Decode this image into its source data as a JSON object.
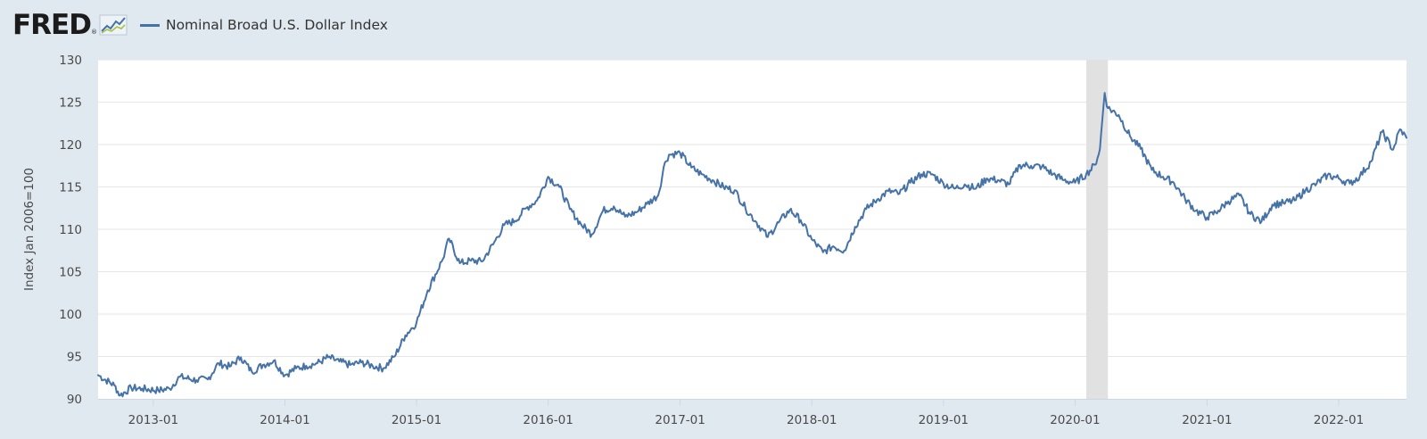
{
  "brand": {
    "logo_text": "FRED",
    "logo_icon": "sparkline-chart-icon",
    "registered_mark": "®"
  },
  "legend": {
    "label": "Nominal Broad U.S. Dollar Index",
    "color": "#4572a7"
  },
  "chart_data": {
    "type": "line",
    "title": "",
    "ylabel": "Index Jan 2006=100",
    "xlabel": "",
    "ylim": [
      90,
      130
    ],
    "yticks": [
      90,
      95,
      100,
      105,
      110,
      115,
      120,
      125,
      130
    ],
    "xlim": [
      "2012-08-01",
      "2022-07-08"
    ],
    "xticks": [
      "2013-01",
      "2014-01",
      "2015-01",
      "2016-01",
      "2017-01",
      "2018-01",
      "2019-01",
      "2020-01",
      "2021-01",
      "2022-01"
    ],
    "grid": true,
    "recession_band": {
      "start": "2020-02",
      "end": "2020-04",
      "color": "#e1e1e1"
    },
    "series": [
      {
        "name": "Nominal Broad U.S. Dollar Index",
        "color": "#4572a7",
        "points": [
          [
            "2012-08-01",
            92.8
          ],
          [
            "2012-09-15",
            91.6
          ],
          [
            "2012-10-01",
            90.4
          ],
          [
            "2012-11-01",
            91.3
          ],
          [
            "2012-12-01",
            91.2
          ],
          [
            "2013-01-15",
            91.0
          ],
          [
            "2013-02-15",
            91.2
          ],
          [
            "2013-03-15",
            92.6
          ],
          [
            "2013-05-01",
            92.2
          ],
          [
            "2013-06-01",
            92.3
          ],
          [
            "2013-07-01",
            94.2
          ],
          [
            "2013-08-01",
            93.8
          ],
          [
            "2013-09-01",
            94.9
          ],
          [
            "2013-10-01",
            93.2
          ],
          [
            "2013-11-01",
            94.0
          ],
          [
            "2013-12-01",
            94.5
          ],
          [
            "2014-01-01",
            92.8
          ],
          [
            "2014-02-01",
            93.6
          ],
          [
            "2014-03-01",
            93.9
          ],
          [
            "2014-04-01",
            94.2
          ],
          [
            "2014-05-01",
            94.9
          ],
          [
            "2014-06-01",
            94.4
          ],
          [
            "2014-07-01",
            94.0
          ],
          [
            "2014-08-01",
            94.3
          ],
          [
            "2014-09-01",
            93.9
          ],
          [
            "2014-10-01",
            93.6
          ],
          [
            "2014-11-01",
            95.0
          ],
          [
            "2014-12-01",
            97.5
          ],
          [
            "2015-01-01",
            99.0
          ],
          [
            "2015-02-01",
            102.8
          ],
          [
            "2015-03-15",
            106.5
          ],
          [
            "2015-04-01",
            108.9
          ],
          [
            "2015-05-01",
            106.0
          ],
          [
            "2015-06-01",
            106.3
          ],
          [
            "2015-07-01",
            106.2
          ],
          [
            "2015-08-01",
            108.2
          ],
          [
            "2015-09-01",
            110.5
          ],
          [
            "2015-10-01",
            111.0
          ],
          [
            "2015-11-01",
            112.5
          ],
          [
            "2015-12-01",
            113.4
          ],
          [
            "2016-01-01",
            116.2
          ],
          [
            "2016-02-01",
            115.0
          ],
          [
            "2016-03-01",
            112.4
          ],
          [
            "2016-04-01",
            110.6
          ],
          [
            "2016-05-01",
            109.4
          ],
          [
            "2016-06-01",
            112.2
          ],
          [
            "2016-07-01",
            112.7
          ],
          [
            "2016-08-01",
            111.5
          ],
          [
            "2016-09-01",
            112.0
          ],
          [
            "2016-10-01",
            113.0
          ],
          [
            "2016-11-01",
            114.0
          ],
          [
            "2016-11-20",
            117.9
          ],
          [
            "2016-12-01",
            118.8
          ],
          [
            "2017-01-01",
            119.0
          ],
          [
            "2017-02-01",
            117.3
          ],
          [
            "2017-03-01",
            116.5
          ],
          [
            "2017-04-01",
            115.8
          ],
          [
            "2017-05-01",
            115.0
          ],
          [
            "2017-06-01",
            114.6
          ],
          [
            "2017-07-01",
            112.5
          ],
          [
            "2017-08-01",
            110.8
          ],
          [
            "2017-09-01",
            109.1
          ],
          [
            "2017-10-01",
            110.8
          ],
          [
            "2017-11-01",
            112.3
          ],
          [
            "2017-12-01",
            111.1
          ],
          [
            "2018-01-01",
            108.8
          ],
          [
            "2018-02-01",
            107.3
          ],
          [
            "2018-03-01",
            108.0
          ],
          [
            "2018-04-01",
            107.5
          ],
          [
            "2018-05-01",
            110.3
          ],
          [
            "2018-06-01",
            112.4
          ],
          [
            "2018-07-01",
            113.5
          ],
          [
            "2018-08-01",
            114.5
          ],
          [
            "2018-09-01",
            114.2
          ],
          [
            "2018-10-01",
            115.5
          ],
          [
            "2018-11-01",
            116.5
          ],
          [
            "2018-12-01",
            116.5
          ],
          [
            "2019-01-01",
            115.4
          ],
          [
            "2019-02-01",
            114.8
          ],
          [
            "2019-03-01",
            115.3
          ],
          [
            "2019-04-01",
            114.8
          ],
          [
            "2019-05-01",
            116.0
          ],
          [
            "2019-06-01",
            115.8
          ],
          [
            "2019-07-01",
            115.3
          ],
          [
            "2019-08-01",
            117.6
          ],
          [
            "2019-09-01",
            117.5
          ],
          [
            "2019-10-01",
            117.4
          ],
          [
            "2019-11-01",
            116.5
          ],
          [
            "2019-12-01",
            115.8
          ],
          [
            "2020-01-01",
            115.5
          ],
          [
            "2020-02-01",
            116.5
          ],
          [
            "2020-02-25",
            117.6
          ],
          [
            "2020-03-10",
            119.5
          ],
          [
            "2020-03-23",
            126.1
          ],
          [
            "2020-04-01",
            124.3
          ],
          [
            "2020-05-01",
            123.5
          ],
          [
            "2020-06-01",
            121.0
          ],
          [
            "2020-07-01",
            119.5
          ],
          [
            "2020-08-01",
            117.0
          ],
          [
            "2020-09-01",
            116.2
          ],
          [
            "2020-10-01",
            115.5
          ],
          [
            "2020-11-01",
            113.6
          ],
          [
            "2020-12-01",
            112.2
          ],
          [
            "2021-01-01",
            111.4
          ],
          [
            "2021-02-01",
            112.2
          ],
          [
            "2021-03-01",
            113.3
          ],
          [
            "2021-04-01",
            114.0
          ],
          [
            "2021-05-01",
            111.8
          ],
          [
            "2021-06-01",
            110.9
          ],
          [
            "2021-07-01",
            112.9
          ],
          [
            "2021-08-01",
            113.1
          ],
          [
            "2021-09-01",
            113.4
          ],
          [
            "2021-10-01",
            114.6
          ],
          [
            "2021-11-01",
            115.4
          ],
          [
            "2021-12-01",
            116.4
          ],
          [
            "2022-01-01",
            116.0
          ],
          [
            "2022-02-01",
            115.4
          ],
          [
            "2022-03-01",
            116.3
          ],
          [
            "2022-04-01",
            118.0
          ],
          [
            "2022-05-01",
            121.5
          ],
          [
            "2022-06-01",
            119.4
          ],
          [
            "2022-06-20",
            121.8
          ],
          [
            "2022-07-08",
            120.8
          ]
        ]
      }
    ]
  }
}
